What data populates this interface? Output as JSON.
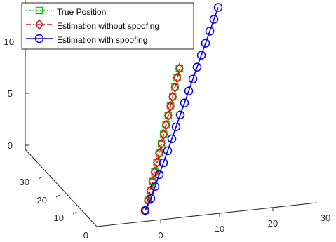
{
  "chart_data": {
    "type": "line3d",
    "title": "",
    "xlabel": "",
    "ylabel": "",
    "zlabel": "",
    "xlim": [
      0,
      30
    ],
    "ylim": [
      0,
      30
    ],
    "zlim": [
      0,
      12
    ],
    "x_ticks": [
      "0",
      "10",
      "20",
      "30"
    ],
    "y_ticks": [
      "0",
      "10",
      "20",
      "30"
    ],
    "z_ticks": [
      "0",
      "5",
      "10"
    ],
    "grid": false,
    "legend_position": "top-left",
    "series": [
      {
        "name": "True Position",
        "color": "#00cc00",
        "line_style": "dotted",
        "marker": "square",
        "points": [
          [
            0,
            0,
            0
          ],
          [
            1,
            1,
            0.7
          ],
          [
            1.8,
            1.8,
            1.4
          ],
          [
            2.6,
            2.6,
            2.1
          ],
          [
            3.4,
            3.4,
            2.8
          ],
          [
            4.2,
            4.2,
            3.5
          ],
          [
            5.0,
            5.0,
            4.2
          ],
          [
            5.8,
            5.8,
            4.9
          ],
          [
            6.6,
            6.6,
            5.6
          ],
          [
            7.4,
            7.4,
            6.3
          ],
          [
            8.2,
            8.2,
            7.0
          ],
          [
            9.0,
            9.0,
            7.7
          ],
          [
            9.8,
            9.8,
            8.4
          ],
          [
            10.6,
            10.6,
            9.1
          ],
          [
            11.4,
            11.4,
            9.8
          ],
          [
            12.2,
            12.2,
            10.5
          ]
        ]
      },
      {
        "name": "Estimation without spoofing",
        "color": "#dd1111",
        "line_style": "dashdot",
        "marker": "diamond",
        "points": [
          [
            0,
            0,
            0
          ],
          [
            1,
            1,
            0.7
          ],
          [
            1.8,
            1.8,
            1.4
          ],
          [
            2.6,
            2.6,
            2.1
          ],
          [
            3.4,
            3.4,
            2.8
          ],
          [
            4.2,
            4.2,
            3.5
          ],
          [
            5.0,
            5.0,
            4.2
          ],
          [
            5.8,
            5.8,
            4.9
          ],
          [
            6.6,
            6.6,
            5.6
          ],
          [
            7.4,
            7.4,
            6.3
          ],
          [
            8.2,
            8.2,
            7.0
          ],
          [
            9.0,
            9.0,
            7.7
          ],
          [
            9.8,
            9.8,
            8.4
          ],
          [
            10.6,
            10.6,
            9.1
          ],
          [
            11.4,
            11.4,
            9.8
          ],
          [
            12.2,
            12.2,
            10.5
          ]
        ]
      },
      {
        "name": "Estimation with spoofing",
        "color": "#0000ee",
        "line_style": "solid",
        "marker": "circle",
        "points": [
          [
            0,
            0,
            0
          ],
          [
            2,
            2,
            0.5
          ],
          [
            3.5,
            3.5,
            1.2
          ],
          [
            5.0,
            5.0,
            1.9
          ],
          [
            6.5,
            6.5,
            2.6
          ],
          [
            8.0,
            8.0,
            3.3
          ],
          [
            9.5,
            9.5,
            4.0
          ],
          [
            11.0,
            11.0,
            4.7
          ],
          [
            12.5,
            12.5,
            5.4
          ],
          [
            14.0,
            14.0,
            6.1
          ],
          [
            15.5,
            15.5,
            6.8
          ],
          [
            17.0,
            17.0,
            7.5
          ],
          [
            18.5,
            18.5,
            8.2
          ],
          [
            20.0,
            20.0,
            8.9
          ],
          [
            21.5,
            21.5,
            9.6
          ],
          [
            23.0,
            23.0,
            10.3
          ],
          [
            24.5,
            24.5,
            11.0
          ],
          [
            26.0,
            26.0,
            11.7
          ]
        ]
      }
    ]
  }
}
